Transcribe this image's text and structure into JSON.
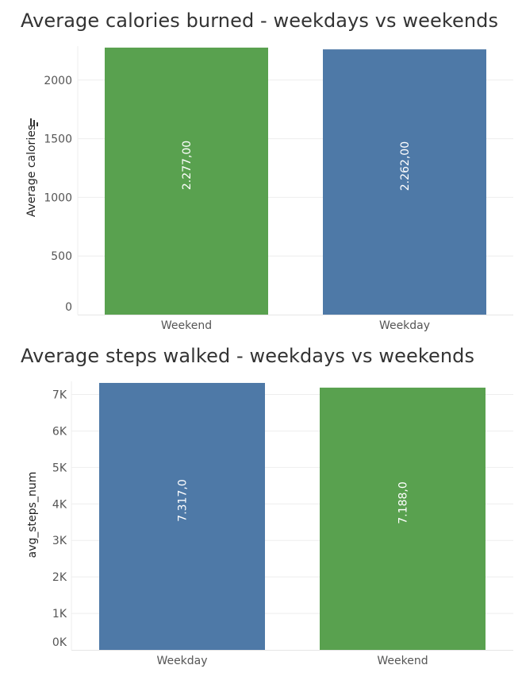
{
  "chart_data": [
    {
      "type": "bar",
      "title": "Average calories burned - weekdays vs weekends",
      "ylabel": "Average calories",
      "ylabel_icon": "sort-descending-icon",
      "categories": [
        "Weekend",
        "Weekday"
      ],
      "values": [
        2277,
        2262
      ],
      "data_labels": [
        "2.277,00",
        "2.262,00"
      ],
      "bar_colors": [
        "#59a14f",
        "#4e79a7"
      ],
      "yticks": [
        0,
        500,
        1000,
        1500,
        2000
      ],
      "ytick_labels": [
        "0",
        "500",
        "1000",
        "1500",
        "2000"
      ],
      "ylim": [
        0,
        2290
      ],
      "grid": true
    },
    {
      "type": "bar",
      "title": "Average steps walked - weekdays vs weekends",
      "ylabel": "avg_steps_num",
      "categories": [
        "Weekday",
        "Weekend"
      ],
      "values": [
        7317,
        7188
      ],
      "data_labels": [
        "7.317,0",
        "7.188,0"
      ],
      "bar_colors": [
        "#4e79a7",
        "#59a14f"
      ],
      "yticks": [
        0,
        1000,
        2000,
        3000,
        4000,
        5000,
        6000,
        7000
      ],
      "ytick_labels": [
        "0K",
        "1K",
        "2K",
        "3K",
        "4K",
        "5K",
        "6K",
        "7K"
      ],
      "ylim": [
        0,
        7360
      ],
      "grid": true
    }
  ]
}
